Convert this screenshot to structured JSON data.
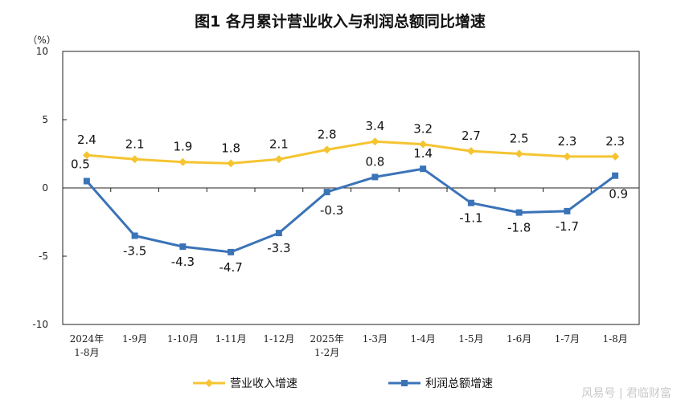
{
  "chart_data": {
    "type": "line",
    "title": "图1  各月累计营业收入与利润总额同比增速",
    "yunit": "（%）",
    "ylim": [
      -10,
      10
    ],
    "yticks": [
      10,
      5,
      0,
      -5,
      -10
    ],
    "categories": [
      [
        "2024年",
        "1-8月"
      ],
      [
        "1-9月"
      ],
      [
        "1-10月"
      ],
      [
        "1-11月"
      ],
      [
        "1-12月"
      ],
      [
        "2025年",
        "1-2月"
      ],
      [
        "1-3月"
      ],
      [
        "1-4月"
      ],
      [
        "1-5月"
      ],
      [
        "1-6月"
      ],
      [
        "1-7月"
      ],
      [
        "1-8月"
      ]
    ],
    "series": [
      {
        "name": "营业收入增速",
        "color": "#F5C431",
        "marker": "diamond",
        "values": [
          2.4,
          2.1,
          1.9,
          1.8,
          2.1,
          2.8,
          3.4,
          3.2,
          2.7,
          2.5,
          2.3,
          2.3
        ],
        "labels": [
          "2.4",
          "2.1",
          "1.9",
          "1.8",
          "2.1",
          "2.8",
          "3.4",
          "3.2",
          "2.7",
          "2.5",
          "2.3",
          "2.3"
        ]
      },
      {
        "name": "利润总额增速",
        "color": "#3A73B8",
        "marker": "square",
        "values": [
          0.5,
          -3.5,
          -4.3,
          -4.7,
          -3.3,
          -0.3,
          0.8,
          1.4,
          -1.1,
          -1.8,
          -1.7,
          0.9
        ],
        "labels": [
          "0.5",
          "-3.5",
          "-4.3",
          "-4.7",
          "-3.3",
          "-0.3",
          "0.8",
          "1.4",
          "-1.1",
          "-1.8",
          "-1.7",
          "0.9"
        ]
      }
    ],
    "legend_position": "bottom",
    "grid": false,
    "watermark": "风易号 | 君临财富"
  }
}
